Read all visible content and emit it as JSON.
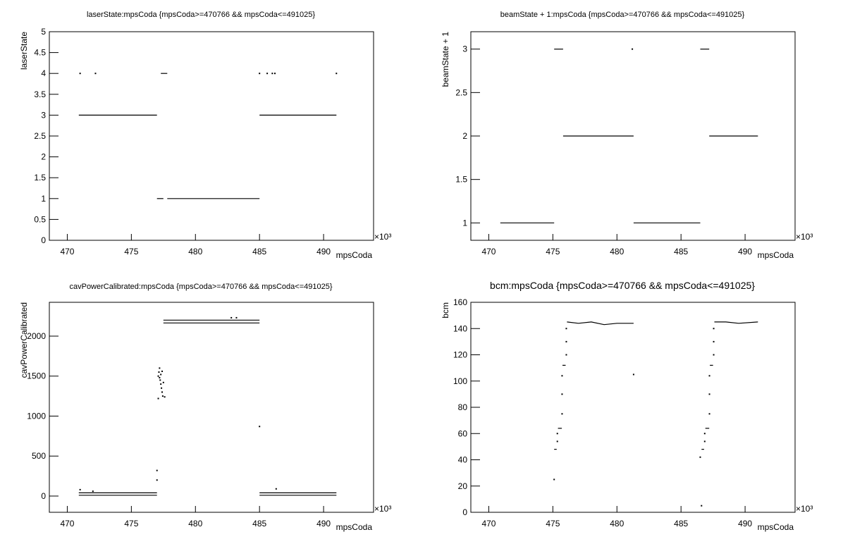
{
  "chart_data": [
    {
      "type": "line",
      "title": "laserState:mpsCoda {mpsCoda>=470766 && mpsCoda<=491025}",
      "x_label": "mpsCoda",
      "y_label": "laserState",
      "x_exponent": "×10³",
      "xlim": [
        468.6,
        493.9
      ],
      "xticks": [
        470,
        475,
        480,
        485,
        490
      ],
      "ylim": [
        0,
        5
      ],
      "yticks": [
        0,
        0.5,
        1,
        1.5,
        2,
        2.5,
        3,
        3.5,
        4,
        4.5,
        5
      ],
      "color": "#000000",
      "series": [
        {
          "style": "line",
          "x": [
            470.9,
            477,
            null,
            477,
            477.5,
            null,
            477.8,
            485,
            null,
            485,
            491
          ],
          "values": [
            3,
            3,
            null,
            1,
            1,
            null,
            1,
            1,
            null,
            3,
            3
          ]
        },
        {
          "style": "line",
          "x": [
            477.3,
            477.8
          ],
          "values": [
            4,
            4
          ]
        },
        {
          "style": "dots",
          "x": [
            471,
            472.2,
            485,
            485.6,
            486,
            486.2,
            491
          ],
          "values": [
            4,
            4,
            4,
            4,
            4,
            4,
            4
          ]
        }
      ]
    },
    {
      "type": "line",
      "title": "beamState + 1:mpsCoda {mpsCoda>=470766 && mpsCoda<=491025}",
      "x_label": "mpsCoda",
      "y_label": "beamState + 1",
      "x_exponent": "×10³",
      "xlim": [
        468.6,
        493.9
      ],
      "xticks": [
        470,
        475,
        480,
        485,
        490
      ],
      "ylim": [
        0.8,
        3.2
      ],
      "yticks": [
        1,
        1.5,
        2,
        2.5,
        3
      ],
      "color": "#000000",
      "series": [
        {
          "style": "line",
          "x": [
            470.9,
            475.1,
            null,
            475.1,
            475.8,
            null,
            475.8,
            481.3,
            null,
            481.3,
            486.5,
            null,
            486.5,
            487.2,
            null,
            487.2,
            491
          ],
          "values": [
            1,
            1,
            null,
            3,
            3,
            null,
            2,
            2,
            null,
            1,
            1,
            null,
            3,
            3,
            null,
            2,
            2
          ]
        },
        {
          "style": "dots",
          "x": [
            481.2
          ],
          "values": [
            3
          ]
        }
      ]
    },
    {
      "type": "line",
      "title": "cavPowerCalibrated:mpsCoda {mpsCoda>=470766 && mpsCoda<=491025}",
      "x_label": "mpsCoda",
      "y_label": "cavPowerCalibrated",
      "x_exponent": "×10³",
      "xlim": [
        468.6,
        493.9
      ],
      "xticks": [
        470,
        475,
        480,
        485,
        490
      ],
      "ylim": [
        -203,
        2423
      ],
      "yticks": [
        0,
        500,
        1000,
        1500,
        2000
      ],
      "color": "#000000",
      "series": [
        {
          "style": "line",
          "x": [
            470.9,
            477,
            null,
            470.9,
            477,
            null,
            477.5,
            485,
            null,
            477.5,
            485,
            null,
            485,
            491,
            null,
            485,
            491
          ],
          "values": [
            40,
            40,
            null,
            10,
            10,
            null,
            2200,
            2200,
            null,
            2165,
            2165,
            null,
            40,
            40,
            null,
            10,
            10
          ]
        },
        {
          "style": "dots",
          "x": [
            477.1,
            477.15,
            477.2,
            477.25,
            477.3,
            477.35,
            477.4,
            477.45,
            477.1,
            477.2,
            477.3,
            477.4,
            477.5,
            477.6,
            477,
            477,
            485,
            471,
            472,
            482.8,
            483.2,
            486.3
          ],
          "values": [
            1500,
            1550,
            1600,
            1450,
            1400,
            1350,
            1300,
            1250,
            1220,
            1480,
            1520,
            1560,
            1420,
            1240,
            320,
            200,
            870,
            80,
            60,
            2230,
            2230,
            90
          ]
        }
      ]
    },
    {
      "type": "line",
      "title": "bcm:mpsCoda {mpsCoda>=470766 && mpsCoda<=491025}",
      "x_label": "mpsCoda",
      "y_label": "bcm",
      "x_exponent": "×10³",
      "xlim": [
        468.6,
        493.9
      ],
      "xticks": [
        470,
        475,
        480,
        485,
        490
      ],
      "ylim": [
        0,
        160
      ],
      "yticks": [
        0,
        20,
        40,
        60,
        80,
        100,
        120,
        140,
        160
      ],
      "color": "#000000",
      "series": [
        {
          "style": "line",
          "x": [
            475.1,
            475.3,
            null,
            475.4,
            475.7,
            null,
            475.75,
            476,
            null,
            476.1,
            477,
            478,
            479,
            480,
            481.3,
            null,
            486.6,
            486.8,
            null,
            486.9,
            487.2,
            null,
            487.25,
            487.5,
            null,
            487.6,
            488.5,
            489.5,
            491
          ],
          "values": [
            48,
            48,
            null,
            64,
            64,
            null,
            112,
            112,
            null,
            145,
            144,
            145,
            143,
            144,
            144,
            null,
            48,
            48,
            null,
            64,
            64,
            null,
            112,
            112,
            null,
            145,
            145,
            144,
            145
          ]
        },
        {
          "style": "dots",
          "x": [
            475.35,
            475.35,
            475.72,
            475.72,
            475.72,
            476.05,
            476.05,
            476.05,
            475.1,
            481.3,
            486.85,
            486.85,
            487.22,
            487.22,
            487.22,
            487.55,
            487.55,
            487.55,
            486.5,
            486.6
          ],
          "values": [
            54,
            60,
            75,
            90,
            104,
            120,
            130,
            140,
            25,
            105,
            54,
            60,
            75,
            90,
            104,
            120,
            130,
            140,
            42,
            5
          ]
        }
      ]
    }
  ]
}
